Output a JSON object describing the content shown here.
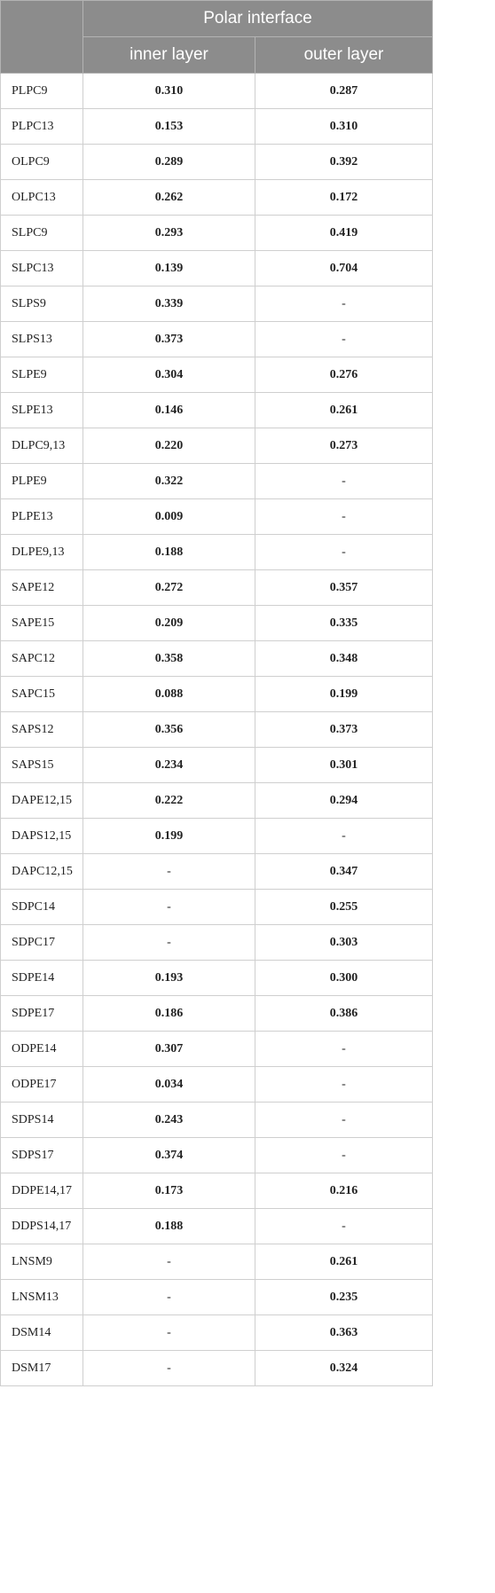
{
  "header": {
    "group_label": "Polar interface",
    "col_inner": "inner layer",
    "col_outer": "outer layer"
  },
  "rows": [
    {
      "name": "PLPC9",
      "inner": "0.310",
      "outer": "0.287"
    },
    {
      "name": "PLPC13",
      "inner": "0.153",
      "outer": "0.310"
    },
    {
      "name": "OLPC9",
      "inner": "0.289",
      "outer": "0.392"
    },
    {
      "name": "OLPC13",
      "inner": "0.262",
      "outer": "0.172"
    },
    {
      "name": "SLPC9",
      "inner": "0.293",
      "outer": "0.419"
    },
    {
      "name": "SLPC13",
      "inner": "0.139",
      "outer": "0.704"
    },
    {
      "name": "SLPS9",
      "inner": "0.339",
      "outer": "-"
    },
    {
      "name": "SLPS13",
      "inner": "0.373",
      "outer": "-"
    },
    {
      "name": "SLPE9",
      "inner": "0.304",
      "outer": "0.276"
    },
    {
      "name": "SLPE13",
      "inner": "0.146",
      "outer": "0.261"
    },
    {
      "name": "DLPC9,13",
      "inner": "0.220",
      "outer": "0.273"
    },
    {
      "name": "PLPE9",
      "inner": "0.322",
      "outer": "-"
    },
    {
      "name": "PLPE13",
      "inner": "0.009",
      "outer": "-"
    },
    {
      "name": "DLPE9,13",
      "inner": "0.188",
      "outer": "-"
    },
    {
      "name": "SAPE12",
      "inner": "0.272",
      "outer": "0.357"
    },
    {
      "name": "SAPE15",
      "inner": "0.209",
      "outer": "0.335"
    },
    {
      "name": "SAPC12",
      "inner": "0.358",
      "outer": "0.348"
    },
    {
      "name": "SAPC15",
      "inner": "0.088",
      "outer": "0.199"
    },
    {
      "name": "SAPS12",
      "inner": "0.356",
      "outer": "0.373"
    },
    {
      "name": "SAPS15",
      "inner": "0.234",
      "outer": "0.301"
    },
    {
      "name": "DAPE12,15",
      "inner": "0.222",
      "outer": "0.294"
    },
    {
      "name": "DAPS12,15",
      "inner": "0.199",
      "outer": "-"
    },
    {
      "name": "DAPC12,15",
      "inner": "-",
      "outer": "0.347"
    },
    {
      "name": "SDPC14",
      "inner": "-",
      "outer": "0.255"
    },
    {
      "name": "SDPC17",
      "inner": "-",
      "outer": "0.303"
    },
    {
      "name": "SDPE14",
      "inner": "0.193",
      "outer": "0.300"
    },
    {
      "name": "SDPE17",
      "inner": "0.186",
      "outer": "0.386"
    },
    {
      "name": "ODPE14",
      "inner": "0.307",
      "outer": "-"
    },
    {
      "name": "ODPE17",
      "inner": "0.034",
      "outer": "-"
    },
    {
      "name": "SDPS14",
      "inner": "0.243",
      "outer": "-"
    },
    {
      "name": "SDPS17",
      "inner": "0.374",
      "outer": "-"
    },
    {
      "name": "DDPE14,17",
      "inner": "0.173",
      "outer": "0.216"
    },
    {
      "name": "DDPS14,17",
      "inner": "0.188",
      "outer": "-"
    },
    {
      "name": "LNSM9",
      "inner": "-",
      "outer": "0.261"
    },
    {
      "name": "LNSM13",
      "inner": "-",
      "outer": "0.235"
    },
    {
      "name": "DSM14",
      "inner": "-",
      "outer": "0.363"
    },
    {
      "name": "DSM17",
      "inner": "-",
      "outer": "0.324"
    }
  ]
}
